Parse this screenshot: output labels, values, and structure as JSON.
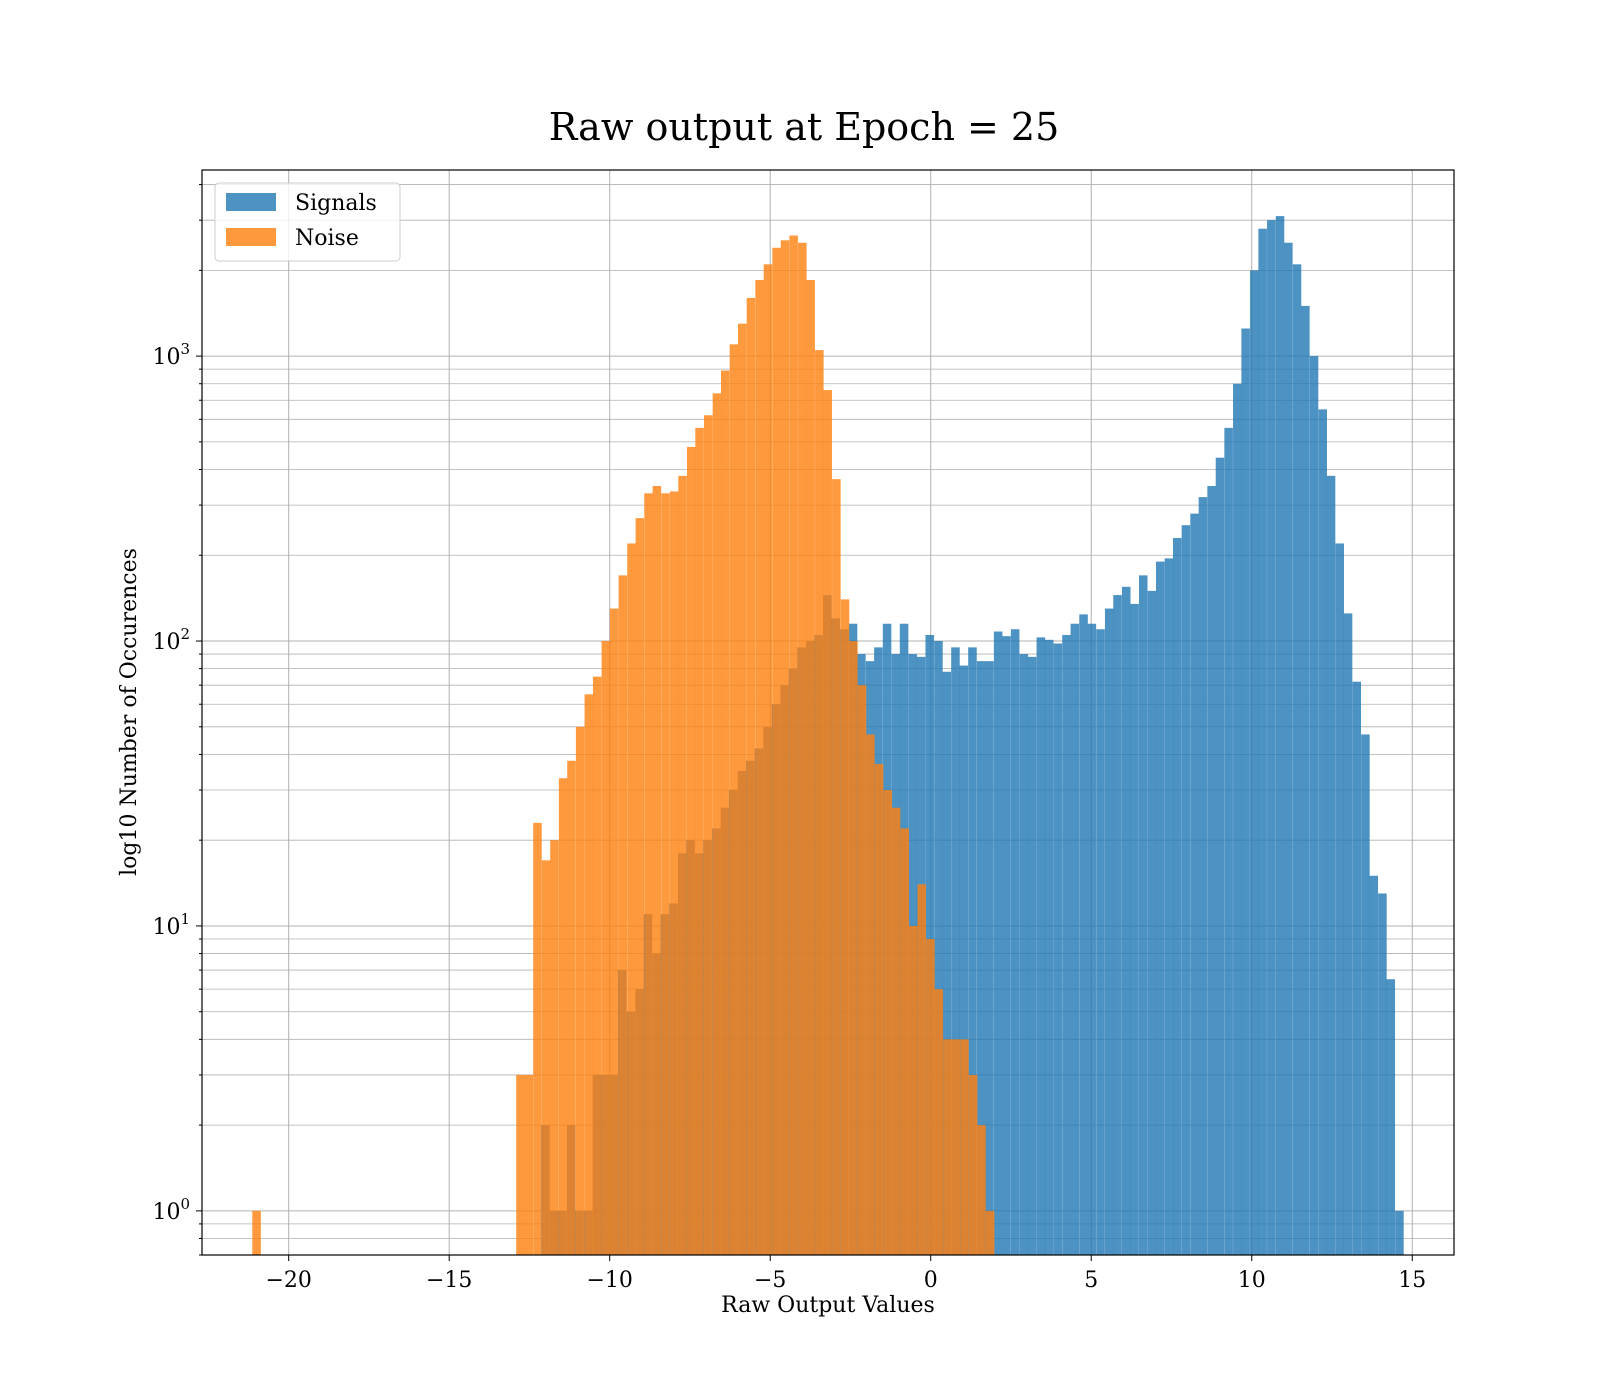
{
  "chart_data": {
    "type": "bar",
    "histogram": true,
    "title": "Raw output at Epoch = 25",
    "xlabel": "Raw Output Values",
    "ylabel": "log10 Number of Occurences",
    "xlim": [
      -22.7,
      16.3
    ],
    "ylim": [
      0.7,
      4500
    ],
    "yscale": "log",
    "grid": true,
    "legend_position": "top-left",
    "x_ticks": [
      -20,
      -15,
      -10,
      -5,
      0,
      5,
      10,
      15
    ],
    "x_tick_labels": [
      "−20",
      "−15",
      "−10",
      "−5",
      "0",
      "5",
      "10",
      "15"
    ],
    "y_ticks": [
      {
        "value": 1,
        "base": "10",
        "exp": "0"
      },
      {
        "value": 10,
        "base": "10",
        "exp": "1"
      },
      {
        "value": 100,
        "base": "10",
        "exp": "2"
      },
      {
        "value": 1000,
        "base": "10",
        "exp": "3"
      }
    ],
    "series": [
      {
        "name": "Signals",
        "color": "#1f77b4",
        "bin_width": 0.266,
        "bins": [
          {
            "x": -12.0,
            "y": 2
          },
          {
            "x": -11.73,
            "y": 1
          },
          {
            "x": -11.47,
            "y": 1
          },
          {
            "x": -11.2,
            "y": 2
          },
          {
            "x": -10.94,
            "y": 1
          },
          {
            "x": -10.67,
            "y": 1
          },
          {
            "x": -10.4,
            "y": 3
          },
          {
            "x": -10.14,
            "y": 3
          },
          {
            "x": -9.87,
            "y": 3
          },
          {
            "x": -9.61,
            "y": 7
          },
          {
            "x": -9.34,
            "y": 5
          },
          {
            "x": -9.07,
            "y": 6
          },
          {
            "x": -8.81,
            "y": 11
          },
          {
            "x": -8.54,
            "y": 8
          },
          {
            "x": -8.28,
            "y": 11
          },
          {
            "x": -8.01,
            "y": 12
          },
          {
            "x": -7.74,
            "y": 18
          },
          {
            "x": -7.48,
            "y": 20
          },
          {
            "x": -7.21,
            "y": 18
          },
          {
            "x": -6.95,
            "y": 20
          },
          {
            "x": -6.68,
            "y": 22
          },
          {
            "x": -6.41,
            "y": 26
          },
          {
            "x": -6.15,
            "y": 30
          },
          {
            "x": -5.88,
            "y": 35
          },
          {
            "x": -5.62,
            "y": 38
          },
          {
            "x": -5.35,
            "y": 42
          },
          {
            "x": -5.08,
            "y": 50
          },
          {
            "x": -4.82,
            "y": 60
          },
          {
            "x": -4.55,
            "y": 70
          },
          {
            "x": -4.29,
            "y": 80
          },
          {
            "x": -4.02,
            "y": 95
          },
          {
            "x": -3.75,
            "y": 100
          },
          {
            "x": -3.49,
            "y": 105
          },
          {
            "x": -3.22,
            "y": 145
          },
          {
            "x": -2.96,
            "y": 120
          },
          {
            "x": -2.69,
            "y": 110
          },
          {
            "x": -2.42,
            "y": 115
          },
          {
            "x": -2.16,
            "y": 90
          },
          {
            "x": -1.89,
            "y": 85
          },
          {
            "x": -1.63,
            "y": 95
          },
          {
            "x": -1.36,
            "y": 115
          },
          {
            "x": -1.09,
            "y": 90
          },
          {
            "x": -0.83,
            "y": 115
          },
          {
            "x": -0.56,
            "y": 90
          },
          {
            "x": -0.3,
            "y": 88
          },
          {
            "x": -0.03,
            "y": 105
          },
          {
            "x": 0.24,
            "y": 100
          },
          {
            "x": 0.5,
            "y": 78
          },
          {
            "x": 0.77,
            "y": 95
          },
          {
            "x": 1.03,
            "y": 82
          },
          {
            "x": 1.3,
            "y": 95
          },
          {
            "x": 1.57,
            "y": 85
          },
          {
            "x": 1.83,
            "y": 85
          },
          {
            "x": 2.1,
            "y": 108
          },
          {
            "x": 2.36,
            "y": 104
          },
          {
            "x": 2.63,
            "y": 110
          },
          {
            "x": 2.9,
            "y": 90
          },
          {
            "x": 3.16,
            "y": 88
          },
          {
            "x": 3.43,
            "y": 103
          },
          {
            "x": 3.69,
            "y": 101
          },
          {
            "x": 3.96,
            "y": 98
          },
          {
            "x": 4.23,
            "y": 105
          },
          {
            "x": 4.49,
            "y": 115
          },
          {
            "x": 4.76,
            "y": 124
          },
          {
            "x": 5.02,
            "y": 115
          },
          {
            "x": 5.29,
            "y": 110
          },
          {
            "x": 5.56,
            "y": 130
          },
          {
            "x": 5.82,
            "y": 145
          },
          {
            "x": 6.09,
            "y": 155
          },
          {
            "x": 6.35,
            "y": 135
          },
          {
            "x": 6.62,
            "y": 170
          },
          {
            "x": 6.89,
            "y": 150
          },
          {
            "x": 7.15,
            "y": 190
          },
          {
            "x": 7.42,
            "y": 195
          },
          {
            "x": 7.68,
            "y": 230
          },
          {
            "x": 7.95,
            "y": 255
          },
          {
            "x": 8.22,
            "y": 280
          },
          {
            "x": 8.48,
            "y": 320
          },
          {
            "x": 8.75,
            "y": 350
          },
          {
            "x": 9.01,
            "y": 440
          },
          {
            "x": 9.28,
            "y": 560
          },
          {
            "x": 9.55,
            "y": 800
          },
          {
            "x": 9.81,
            "y": 1250
          },
          {
            "x": 10.08,
            "y": 2000
          },
          {
            "x": 10.34,
            "y": 2800
          },
          {
            "x": 10.61,
            "y": 3000
          },
          {
            "x": 10.88,
            "y": 3100
          },
          {
            "x": 11.14,
            "y": 2500
          },
          {
            "x": 11.41,
            "y": 2100
          },
          {
            "x": 11.67,
            "y": 1500
          },
          {
            "x": 11.94,
            "y": 1000
          },
          {
            "x": 12.21,
            "y": 650
          },
          {
            "x": 12.47,
            "y": 380
          },
          {
            "x": 12.74,
            "y": 220
          },
          {
            "x": 13.0,
            "y": 125
          },
          {
            "x": 13.27,
            "y": 72
          },
          {
            "x": 13.54,
            "y": 47
          },
          {
            "x": 13.8,
            "y": 15
          },
          {
            "x": 14.07,
            "y": 13
          },
          {
            "x": 14.33,
            "y": 6.5
          },
          {
            "x": 14.6,
            "y": 1
          }
        ]
      },
      {
        "name": "Noise",
        "color": "#ff7f0e",
        "bin_width": 0.266,
        "bins": [
          {
            "x": -21.0,
            "y": 1
          },
          {
            "x": -12.78,
            "y": 3
          },
          {
            "x": -12.52,
            "y": 3
          },
          {
            "x": -12.25,
            "y": 23
          },
          {
            "x": -11.98,
            "y": 17
          },
          {
            "x": -11.72,
            "y": 20
          },
          {
            "x": -11.45,
            "y": 33
          },
          {
            "x": -11.19,
            "y": 38
          },
          {
            "x": -10.92,
            "y": 50
          },
          {
            "x": -10.65,
            "y": 65
          },
          {
            "x": -10.39,
            "y": 75
          },
          {
            "x": -10.12,
            "y": 100
          },
          {
            "x": -9.86,
            "y": 130
          },
          {
            "x": -9.59,
            "y": 170
          },
          {
            "x": -9.32,
            "y": 220
          },
          {
            "x": -9.06,
            "y": 270
          },
          {
            "x": -8.79,
            "y": 330
          },
          {
            "x": -8.53,
            "y": 350
          },
          {
            "x": -8.26,
            "y": 330
          },
          {
            "x": -7.99,
            "y": 335
          },
          {
            "x": -7.73,
            "y": 380
          },
          {
            "x": -7.46,
            "y": 480
          },
          {
            "x": -7.2,
            "y": 560
          },
          {
            "x": -6.93,
            "y": 620
          },
          {
            "x": -6.66,
            "y": 740
          },
          {
            "x": -6.4,
            "y": 890
          },
          {
            "x": -6.13,
            "y": 1100
          },
          {
            "x": -5.87,
            "y": 1300
          },
          {
            "x": -5.6,
            "y": 1600
          },
          {
            "x": -5.33,
            "y": 1850
          },
          {
            "x": -5.07,
            "y": 2100
          },
          {
            "x": -4.8,
            "y": 2400
          },
          {
            "x": -4.54,
            "y": 2550
          },
          {
            "x": -4.27,
            "y": 2650
          },
          {
            "x": -4.0,
            "y": 2500
          },
          {
            "x": -3.74,
            "y": 1850
          },
          {
            "x": -3.47,
            "y": 1050
          },
          {
            "x": -3.21,
            "y": 760
          },
          {
            "x": -2.94,
            "y": 370
          },
          {
            "x": -2.67,
            "y": 140
          },
          {
            "x": -2.41,
            "y": 100
          },
          {
            "x": -2.14,
            "y": 70
          },
          {
            "x": -1.88,
            "y": 47
          },
          {
            "x": -1.61,
            "y": 37
          },
          {
            "x": -1.34,
            "y": 30
          },
          {
            "x": -1.08,
            "y": 26
          },
          {
            "x": -0.81,
            "y": 22
          },
          {
            "x": -0.55,
            "y": 10
          },
          {
            "x": -0.28,
            "y": 14
          },
          {
            "x": -0.01,
            "y": 9
          },
          {
            "x": 0.25,
            "y": 6
          },
          {
            "x": 0.52,
            "y": 4
          },
          {
            "x": 0.78,
            "y": 4
          },
          {
            "x": 1.05,
            "y": 4
          },
          {
            "x": 1.32,
            "y": 3
          },
          {
            "x": 1.58,
            "y": 2
          },
          {
            "x": 1.85,
            "y": 1
          }
        ]
      }
    ]
  }
}
